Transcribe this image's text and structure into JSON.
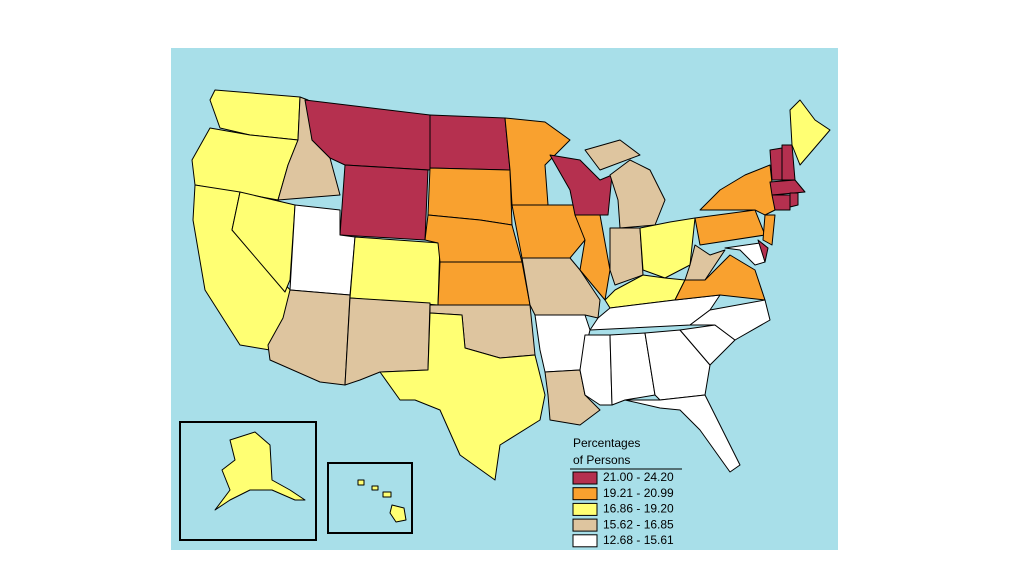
{
  "legend": {
    "title": [
      "Percentages",
      "of Persons"
    ],
    "items": [
      {
        "label": "21.00 - 24.20",
        "color": "#b5304f"
      },
      {
        "label": "19.21 - 20.99",
        "color": "#f9a12f"
      },
      {
        "label": "16.86 - 19.20",
        "color": "#ffff73"
      },
      {
        "label": "15.62 - 16.85",
        "color": "#dec59f"
      },
      {
        "label": "12.68 - 15.61",
        "color": "#ffffff"
      }
    ]
  }
}
